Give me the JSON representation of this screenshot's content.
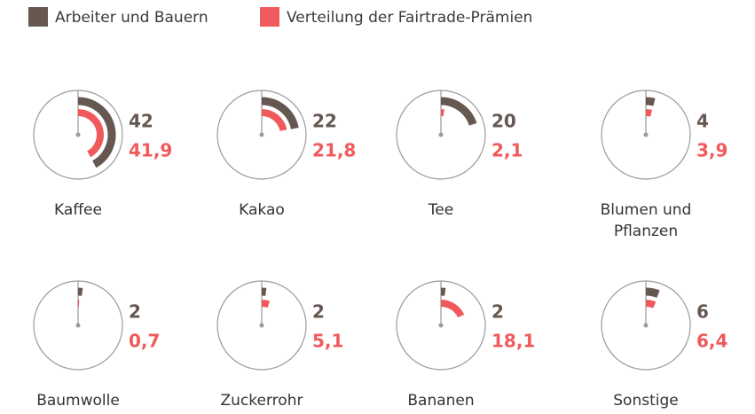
{
  "chart_data": {
    "type": "radial-bar",
    "categories": [
      "Kaffee",
      "Kakao",
      "Tee",
      "Blumen und Pflanzen",
      "Baumwolle",
      "Zuckerrohr",
      "Bananen",
      "Sonstige"
    ],
    "ylim": [
      0,
      100
    ],
    "series": [
      {
        "name": "Arbeiter und Bauern",
        "color": "#665851",
        "values": [
          42,
          22,
          20,
          4,
          2,
          2,
          2,
          6
        ]
      },
      {
        "name": "Verteilung der Fairtrade-Prämien",
        "color": "#f05a5c",
        "values": [
          41.9,
          21.8,
          2.1,
          3.9,
          0.7,
          5.1,
          18.1,
          6.4
        ],
        "value_labels": [
          "41,9",
          "21,8",
          "2,1",
          "3,9",
          "0,7",
          "5,1",
          "18,1",
          "6,4"
        ]
      }
    ]
  }
}
